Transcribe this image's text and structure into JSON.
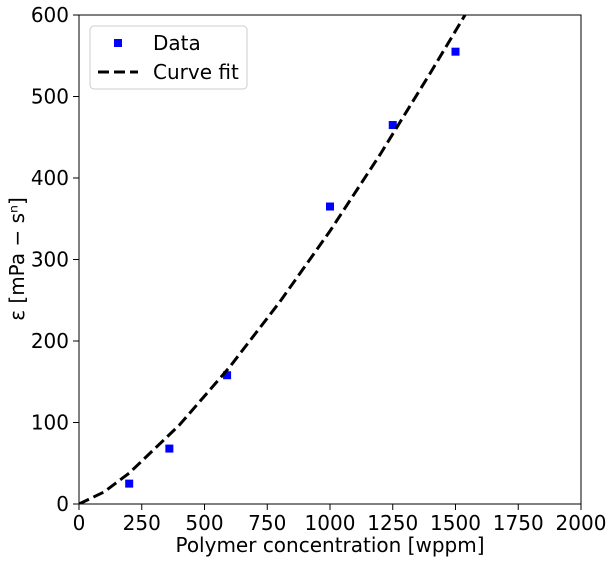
{
  "chart_data": {
    "type": "scatter",
    "xlabel": "Polymer concentration [wppm]",
    "ylabel": "ε [mPa − sⁿ]",
    "xlim": [
      0,
      2000
    ],
    "xticks": [
      0,
      250,
      500,
      750,
      1000,
      1250,
      1500,
      1750,
      2000
    ],
    "ylim": [
      0,
      600
    ],
    "yticks": [
      0,
      100,
      200,
      300,
      400,
      500,
      600
    ],
    "grid": false,
    "legend": "upper left",
    "series": [
      {
        "name": "Data",
        "color": "#0000ff",
        "marker": "square",
        "x": [
          200,
          360,
          590,
          1000,
          1250,
          1500
        ],
        "values": [
          25,
          68,
          158,
          365,
          465,
          555
        ]
      },
      {
        "name": "Curve fit",
        "color": "#000000",
        "linestyle": "dashed",
        "x": [
          0,
          100,
          200,
          400,
          600,
          800,
          1000,
          1200,
          1400,
          1538
        ],
        "values": [
          0,
          14.8,
          37.9,
          96.9,
          168,
          248,
          335,
          429,
          529,
          600
        ]
      }
    ]
  }
}
